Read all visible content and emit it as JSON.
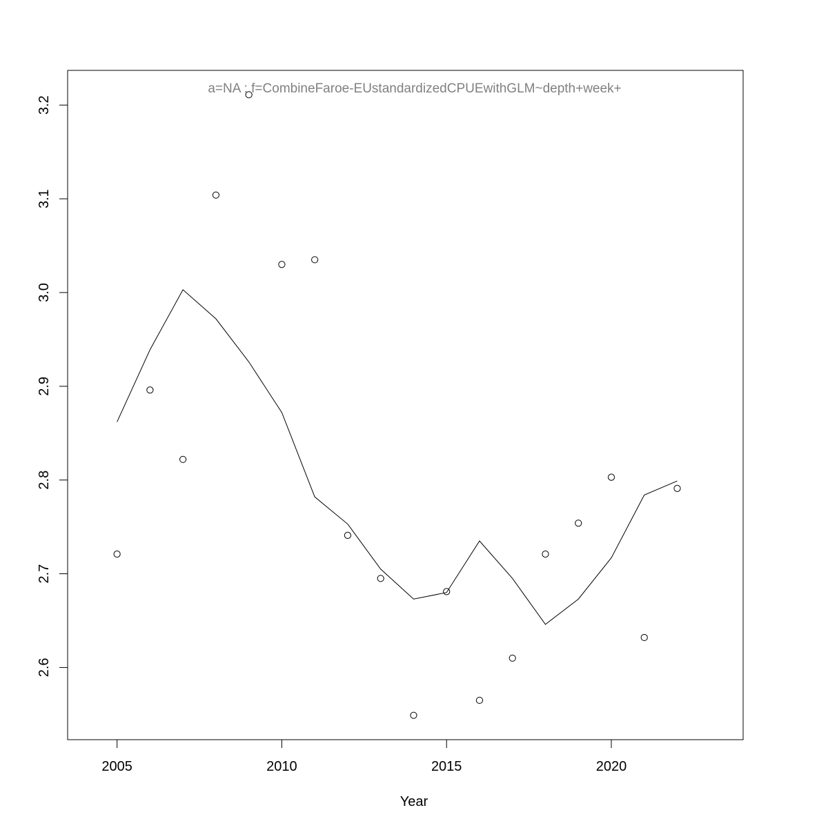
{
  "chart_data": {
    "type": "scatter",
    "title": "",
    "xlabel": "Year",
    "ylabel": "",
    "annotation": "a=NA  :  f=CombineFaroe-EUstandardizedCPUEwithGLM~depth+week+",
    "xlim": [
      2003.5,
      2024.0
    ],
    "ylim": [
      2.523,
      3.237
    ],
    "x_ticks": [
      2005,
      2010,
      2015,
      2020
    ],
    "y_ticks": [
      2.6,
      2.7,
      2.8,
      2.9,
      3.0,
      3.1,
      3.2
    ],
    "y_tick_labels": [
      "2.6",
      "2.7",
      "2.8",
      "2.9",
      "3.0",
      "3.1",
      "3.2"
    ],
    "grid": false,
    "colors": {
      "points": "#000000",
      "line": "#000000",
      "annotation": "#808080"
    },
    "series": [
      {
        "kind": "points",
        "x": [
          2005,
          2006,
          2007,
          2008,
          2009,
          2010,
          2011,
          2012,
          2013,
          2014,
          2015,
          2016,
          2017,
          2018,
          2019,
          2020,
          2021,
          2022
        ],
        "y": [
          2.721,
          2.896,
          2.822,
          3.104,
          3.211,
          3.03,
          3.035,
          2.741,
          2.695,
          2.549,
          2.681,
          2.565,
          2.61,
          2.721,
          2.754,
          2.803,
          2.632,
          2.791
        ]
      },
      {
        "kind": "line",
        "x": [
          2005,
          2006,
          2007,
          2008,
          2009,
          2010,
          2011,
          2012,
          2013,
          2014,
          2015,
          2016,
          2017,
          2018,
          2019,
          2020,
          2021,
          2022
        ],
        "y": [
          2.862,
          2.939,
          3.003,
          2.972,
          2.926,
          2.872,
          2.782,
          2.753,
          2.705,
          2.673,
          2.68,
          2.735,
          2.695,
          2.646,
          2.673,
          2.717,
          2.784,
          2.799
        ]
      }
    ]
  }
}
